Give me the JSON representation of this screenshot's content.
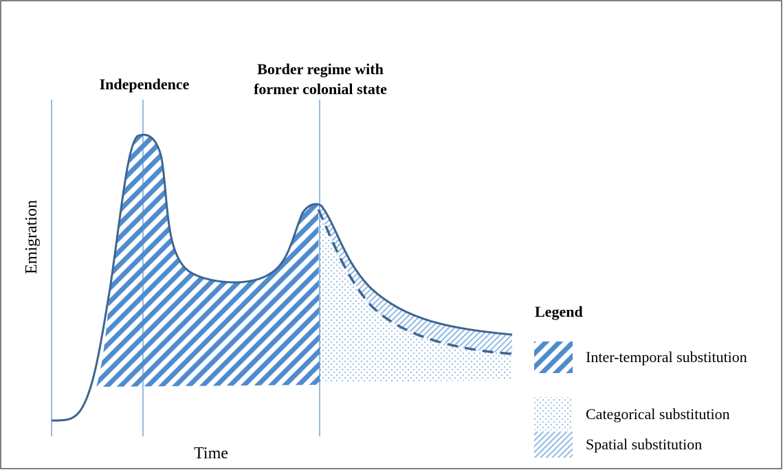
{
  "annotations": {
    "independence": "Independence",
    "border_regime": [
      "Border regime with",
      "former colonial state"
    ]
  },
  "axes": {
    "y_label": "Emigration",
    "x_label": "Time"
  },
  "legend": {
    "title": "Legend",
    "items": [
      "Inter-temporal substitution",
      "Categorical substitution",
      "Spatial substitution"
    ]
  }
}
